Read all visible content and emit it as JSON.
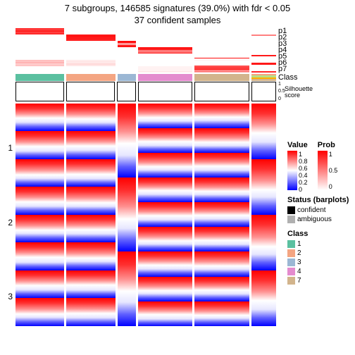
{
  "title": "7 subgroups, 146585 signatures (39.0%) with fdr < 0.05",
  "subtitle": "37 confident samples",
  "y_ticks": [
    "1",
    "2",
    "3"
  ],
  "prob_labels": [
    "p1",
    "p2",
    "p3",
    "p4",
    "p5",
    "p6",
    "p7"
  ],
  "class_label": "Class",
  "silhouette_label": "Silhouette\nscore",
  "sil_ticks": [
    "1",
    "0.5",
    "0"
  ],
  "class_colors": {
    "1": "#5bc0a0",
    "2": "#f4a582",
    "3": "#9bb7d4",
    "4": "#e48bce",
    "5": "#b8e186",
    "6": "#ffb000",
    "7": "#d2b48c"
  },
  "columns": [
    {
      "class": "1",
      "n": 8,
      "sil": [
        0.92,
        0.93,
        0.94,
        0.92,
        0.9,
        0.91,
        0.88,
        0.9
      ],
      "prob": [
        [
          0.9,
          0.7,
          0.85,
          0.8,
          0.9,
          0.75,
          0.85,
          0.8
        ],
        [
          0,
          0,
          0,
          0,
          0,
          0,
          0,
          0
        ],
        [
          0,
          0,
          0,
          0,
          0,
          0,
          0,
          0
        ],
        [
          0,
          0,
          0,
          0,
          0,
          0,
          0,
          0
        ],
        [
          0,
          0,
          0,
          0,
          0,
          0,
          0,
          0
        ],
        [
          0.3,
          0.2,
          0.25,
          0.3,
          0.28,
          0.2,
          0.22,
          0.25
        ],
        [
          0,
          0,
          0,
          0,
          0,
          0,
          0,
          0
        ]
      ]
    },
    {
      "class": "2",
      "n": 8,
      "sil": [
        0.95,
        0.96,
        0.95,
        0.94,
        0.88,
        0.92,
        0.9,
        0.93
      ],
      "prob": [
        [
          0,
          0,
          0,
          0,
          0,
          0,
          0,
          0
        ],
        [
          0.95,
          0.9,
          0.92,
          0.94,
          0.88,
          0.9,
          0.85,
          0.9
        ],
        [
          0,
          0,
          0,
          0,
          0,
          0,
          0,
          0
        ],
        [
          0,
          0,
          0,
          0,
          0,
          0,
          0,
          0
        ],
        [
          0,
          0,
          0,
          0,
          0,
          0,
          0,
          0
        ],
        [
          0.1,
          0.05,
          0.12,
          0.08,
          0.1,
          0.15,
          0.1,
          0.1
        ],
        [
          0,
          0,
          0,
          0,
          0,
          0,
          0,
          0
        ]
      ]
    },
    {
      "class": "3",
      "n": 3,
      "sil": [
        0.9,
        0.75,
        0.92
      ],
      "prob": [
        [
          0,
          0,
          0
        ],
        [
          0,
          0,
          0
        ],
        [
          0.95,
          0.4,
          0.92
        ],
        [
          0,
          0,
          0
        ],
        [
          0,
          0,
          0
        ],
        [
          0,
          0,
          0
        ],
        [
          0,
          0,
          0
        ]
      ]
    },
    {
      "class": "4",
      "n": 9,
      "sil": [
        0.93,
        0.94,
        0.92,
        0.9,
        0.72,
        0.74,
        0.76,
        0.8,
        0.85
      ],
      "prob": [
        [
          0,
          0,
          0,
          0,
          0,
          0,
          0,
          0,
          0
        ],
        [
          0,
          0,
          0,
          0,
          0,
          0,
          0,
          0,
          0
        ],
        [
          0,
          0,
          0,
          0,
          0,
          0,
          0,
          0,
          0
        ],
        [
          0.95,
          0.92,
          0.9,
          0.88,
          0.5,
          0.55,
          0.5,
          0.6,
          0.85
        ],
        [
          0,
          0,
          0,
          0,
          0,
          0,
          0,
          0,
          0
        ],
        [
          0,
          0,
          0,
          0,
          0,
          0,
          0,
          0,
          0
        ],
        [
          0.05,
          0.05,
          0.05,
          0.05,
          0.05,
          0.05,
          0.05,
          0.1,
          0.05
        ]
      ]
    },
    {
      "class": "7",
      "n": 9,
      "sil": [
        0.9,
        0.88,
        0.85,
        0.8,
        0.82,
        0.78,
        0.1,
        0.12,
        0.15
      ],
      "prob": [
        [
          0,
          0,
          0,
          0,
          0,
          0,
          0,
          0,
          0
        ],
        [
          0,
          0,
          0,
          0,
          0,
          0,
          0,
          0,
          0
        ],
        [
          0,
          0,
          0,
          0,
          0,
          0,
          0,
          0,
          0
        ],
        [
          0,
          0,
          0,
          0,
          0,
          0,
          0,
          0,
          0
        ],
        [
          0,
          0,
          0,
          0,
          0,
          0,
          0.95,
          0,
          0
        ],
        [
          0.05,
          0,
          0,
          0,
          0,
          0,
          0,
          0,
          0.7
        ],
        [
          0.7,
          0.72,
          0.8,
          0.75,
          0.78,
          0.7,
          0.3,
          0.6,
          0.35
        ]
      ],
      "amb": [
        0,
        0,
        0,
        0,
        0,
        0,
        1,
        1,
        1
      ]
    },
    {
      "class": "mix",
      "n": 4,
      "classes": [
        "2",
        "5",
        "6",
        "7"
      ],
      "sil": [
        0.2,
        0.22,
        0.12,
        0.3
      ],
      "prob": [
        [
          0,
          0,
          0,
          0
        ],
        [
          0.5,
          0,
          0,
          0
        ],
        [
          0,
          0,
          0,
          0
        ],
        [
          0,
          0,
          0,
          0
        ],
        [
          0,
          0.9,
          0,
          0
        ],
        [
          0,
          0,
          0.9,
          0
        ],
        [
          0,
          0,
          0,
          0.85
        ]
      ],
      "amb": [
        1,
        1,
        1,
        1
      ]
    }
  ],
  "heat": {
    "break1": 0.55,
    "break2": 0.7,
    "value_scale_ticks": [
      "1",
      "0.8",
      "0.6",
      "0.4",
      "0.2",
      "0"
    ],
    "prob_scale_ticks": [
      "1",
      "0.5",
      "0"
    ]
  },
  "legends": {
    "value_title": "Value",
    "prob_title": "Prob",
    "status_title": "Status (barplots)",
    "status_items": [
      {
        "label": "confident",
        "color": "#000000"
      },
      {
        "label": "ambiguous",
        "color": "#b0b0b0"
      }
    ],
    "class_title": "Class",
    "class_items": [
      {
        "label": "1",
        "color": "#5bc0a0"
      },
      {
        "label": "2",
        "color": "#f4a582"
      },
      {
        "label": "3",
        "color": "#9bb7d4"
      },
      {
        "label": "4",
        "color": "#e48bce"
      },
      {
        "label": "7",
        "color": "#d2b48c"
      }
    ],
    "value_gradient": [
      "#ff0000",
      "#ffffff",
      "#0000ff"
    ],
    "prob_gradient": [
      "#ff0000",
      "#ffffff"
    ]
  }
}
